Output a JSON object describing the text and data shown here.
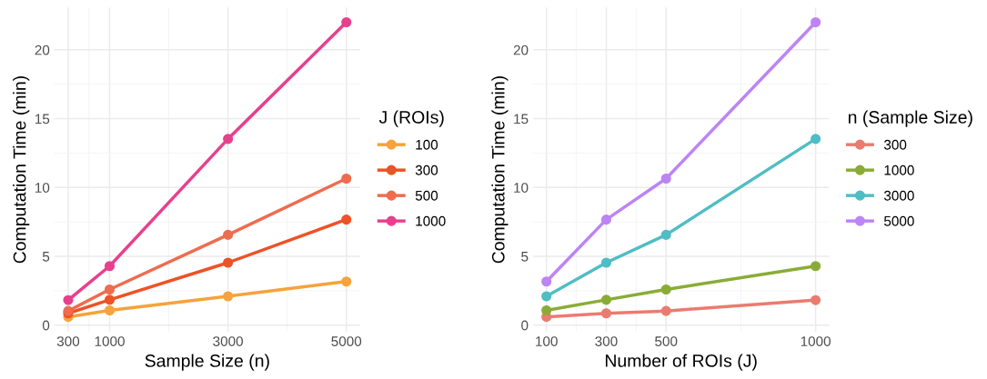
{
  "chart_data": [
    {
      "type": "line",
      "xlabel": "Sample Size (n)",
      "ylabel": "Computation Time (min)",
      "legend_title": "J (ROIs)",
      "legend": "right",
      "marker": "circle",
      "line_style": "solid",
      "grid": true,
      "x": [
        300,
        1000,
        3000,
        5000
      ],
      "xlim": [
        65,
        5235
      ],
      "xticks": [
        300,
        1000,
        3000,
        5000
      ],
      "ylim": [
        -0.47,
        23.07
      ],
      "yticks": [
        0,
        5,
        10,
        15,
        20
      ],
      "series": [
        {
          "name": "100",
          "color": "#f5a33b",
          "values": [
            0.6,
            1.07,
            2.1,
            3.17
          ]
        },
        {
          "name": "300",
          "color": "#ee5227",
          "values": [
            0.86,
            1.84,
            4.54,
            7.67
          ]
        },
        {
          "name": "500",
          "color": "#ef6c4f",
          "values": [
            1.03,
            2.59,
            6.56,
            10.65
          ]
        },
        {
          "name": "1000",
          "color": "#e8408d",
          "values": [
            1.82,
            4.29,
            13.53,
            22.0
          ]
        }
      ]
    },
    {
      "type": "line",
      "xlabel": "Number of ROIs (J)",
      "ylabel": "Computation Time (min)",
      "legend_title": "n (Sample Size)",
      "legend": "right",
      "marker": "circle",
      "line_style": "solid",
      "grid": true,
      "x": [
        100,
        300,
        500,
        1000
      ],
      "xlim": [
        55,
        1045
      ],
      "xticks": [
        100,
        300,
        500,
        1000
      ],
      "ylim": [
        -0.47,
        23.07
      ],
      "yticks": [
        0,
        5,
        10,
        15,
        20
      ],
      "series": [
        {
          "name": "300",
          "color": "#ea7b70",
          "values": [
            0.6,
            0.86,
            1.03,
            1.82
          ]
        },
        {
          "name": "1000",
          "color": "#8aac36",
          "values": [
            1.07,
            1.84,
            2.59,
            4.29
          ]
        },
        {
          "name": "3000",
          "color": "#4fbdc4",
          "values": [
            2.1,
            4.54,
            6.56,
            13.53
          ]
        },
        {
          "name": "5000",
          "color": "#bd84f5",
          "values": [
            3.17,
            7.67,
            10.65,
            22.0
          ]
        }
      ]
    }
  ]
}
